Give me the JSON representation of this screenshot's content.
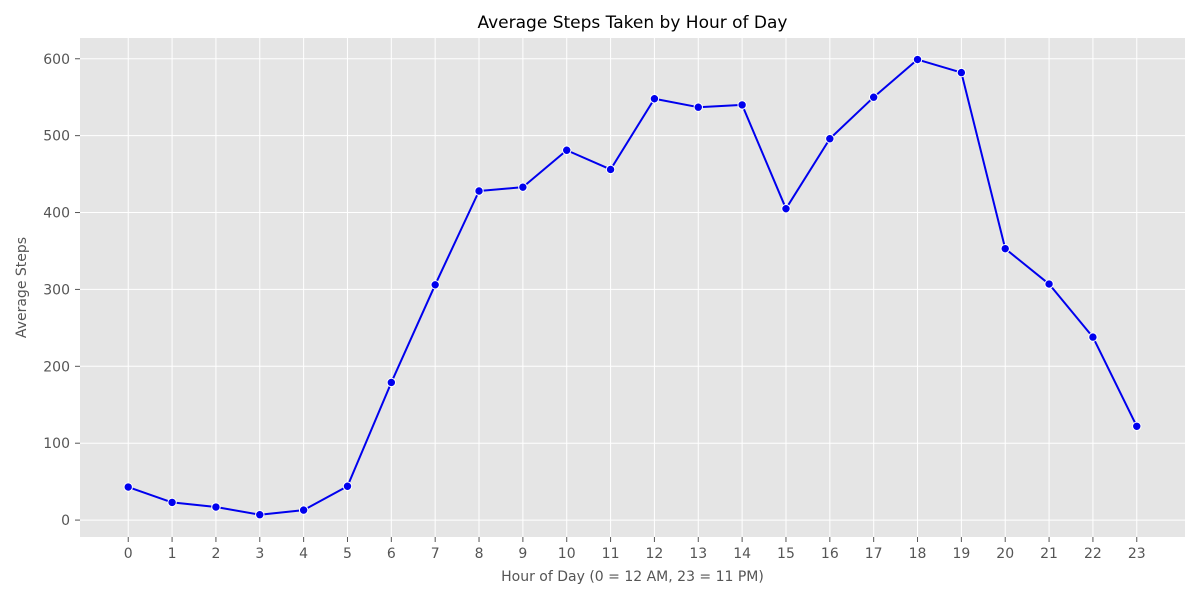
{
  "chart_data": {
    "type": "line",
    "title": "Average Steps Taken by Hour of Day",
    "xlabel": "Hour of Day (0 = 12 AM, 23 = 11 PM)",
    "ylabel": "Average Steps",
    "x": [
      0,
      1,
      2,
      3,
      4,
      5,
      6,
      7,
      8,
      9,
      10,
      11,
      12,
      13,
      14,
      15,
      16,
      17,
      18,
      19,
      20,
      21,
      22,
      23
    ],
    "x_tick_labels": [
      "0",
      "1",
      "2",
      "3",
      "4",
      "5",
      "6",
      "7",
      "8",
      "9",
      "10",
      "11",
      "12",
      "13",
      "14",
      "15",
      "16",
      "17",
      "18",
      "19",
      "20",
      "21",
      "22",
      "23"
    ],
    "y_ticks": [
      0,
      100,
      200,
      300,
      400,
      500,
      600
    ],
    "y_tick_labels": [
      "0",
      "100",
      "200",
      "300",
      "400",
      "500",
      "600"
    ],
    "xlim": [
      -1.1,
      24.1
    ],
    "ylim": [
      -22,
      627
    ],
    "grid": true,
    "legend": "none",
    "series": [
      {
        "values": [
          43,
          23,
          17,
          7,
          13,
          44,
          179,
          306,
          428,
          433,
          481,
          456,
          548,
          537,
          540,
          405,
          496,
          550,
          599,
          582,
          353,
          307,
          238,
          122
        ]
      }
    ],
    "colors": {
      "line": "#0000ee",
      "marker": "#0000ee",
      "marker_edge": "#ffffff",
      "plot_background": "#e5e5e5",
      "grid": "#ffffff",
      "figure_background": "#ffffff"
    }
  }
}
